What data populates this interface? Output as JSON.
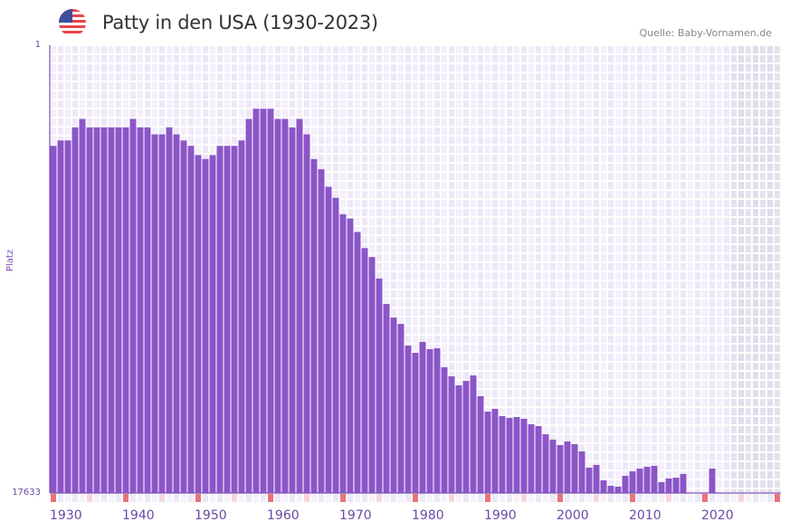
{
  "header": {
    "title": "Patty in den USA (1930-2023)",
    "source": "Quelle: Baby-Vornamen.de",
    "flag_icon": "us-flag-icon"
  },
  "chart_data": {
    "type": "bar",
    "title": "Patty in den USA (1930-2023)",
    "xlabel": "",
    "ylabel": "Platz",
    "y_scale": "log",
    "y_reversed": true,
    "ylim": [
      1,
      17633
    ],
    "y_ticks": [
      "1",
      "17633"
    ],
    "x_range": [
      1930,
      2030
    ],
    "future_shaded_from": 2024,
    "x_ticks": [
      "1930",
      "1940",
      "1950",
      "1960",
      "1970",
      "1980",
      "1990",
      "2000",
      "2010",
      "2020"
    ],
    "colors": {
      "bar": "#8b55c8",
      "axis": "#7a4fb5",
      "decade_marker": "#e8737a",
      "halfdecade_marker": "#f6d6de"
    },
    "years": [
      1930,
      1931,
      1932,
      1933,
      1934,
      1935,
      1936,
      1937,
      1938,
      1939,
      1940,
      1941,
      1942,
      1943,
      1944,
      1945,
      1946,
      1947,
      1948,
      1949,
      1950,
      1951,
      1952,
      1953,
      1954,
      1955,
      1956,
      1957,
      1958,
      1959,
      1960,
      1961,
      1962,
      1963,
      1964,
      1965,
      1966,
      1967,
      1968,
      1969,
      1970,
      1971,
      1972,
      1973,
      1974,
      1975,
      1976,
      1977,
      1978,
      1979,
      1980,
      1981,
      1982,
      1983,
      1984,
      1985,
      1986,
      1987,
      1988,
      1989,
      1990,
      1991,
      1992,
      1993,
      1994,
      1995,
      1996,
      1997,
      1998,
      1999,
      2000,
      2001,
      2002,
      2003,
      2004,
      2005,
      2006,
      2007,
      2008,
      2009,
      2010,
      2011,
      2012,
      2013,
      2014,
      2015,
      2016,
      2017,
      2018,
      2019,
      2020,
      2021,
      2022,
      2023
    ],
    "values": [
      9,
      8,
      8,
      6,
      5,
      6,
      6,
      6,
      6,
      6,
      6,
      5,
      6,
      6,
      7,
      7,
      6,
      7,
      8,
      9,
      11,
      12,
      11,
      9,
      9,
      9,
      8,
      5,
      4,
      4,
      4,
      5,
      5,
      6,
      5,
      7,
      12,
      15,
      22,
      28,
      40,
      44,
      59,
      84,
      102,
      163,
      284,
      382,
      439,
      705,
      825,
      651,
      763,
      748,
      1132,
      1380,
      1681,
      1523,
      1353,
      2131,
      2981,
      2809,
      3290,
      3422,
      3356,
      3491,
      3931,
      4089,
      4885,
      5500,
      6193,
      5721,
      6071,
      7110,
      10145,
      9561,
      13375,
      15058,
      15359,
      12121,
      10980,
      10347,
      9947,
      9752,
      13916,
      12862,
      12608,
      11650,
      null,
      null,
      null,
      10347,
      null,
      null
    ]
  }
}
